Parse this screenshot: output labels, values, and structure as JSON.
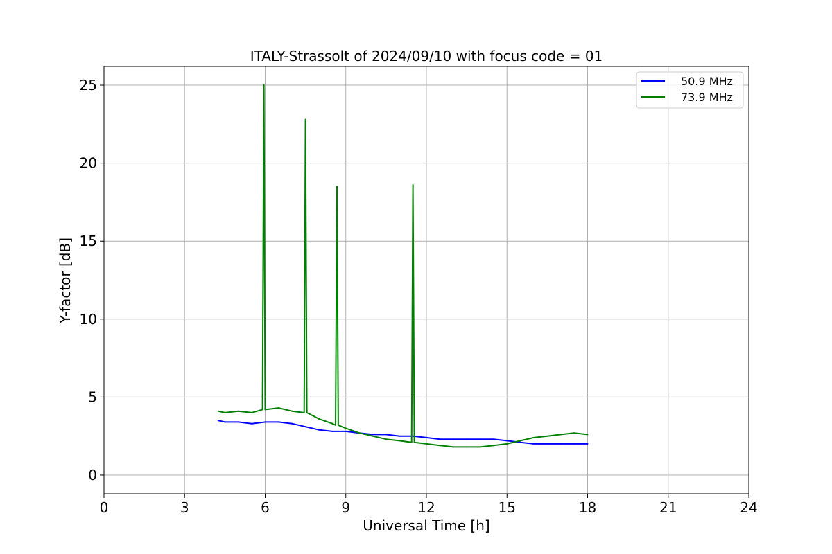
{
  "chart_data": {
    "type": "line",
    "title": "ITALY-Strassolt of 2024/09/10 with focus code = 01",
    "xlabel": "Universal Time [h]",
    "ylabel": "Y-factor [dB]",
    "xlim": [
      0,
      24
    ],
    "ylim": [
      -1.2,
      26.2
    ],
    "x_ticks": [
      0,
      3,
      6,
      9,
      12,
      15,
      18,
      21,
      24
    ],
    "x_tick_labels": [
      "0",
      "3",
      "6",
      "9",
      "12",
      "15",
      "18",
      "21",
      "24"
    ],
    "y_ticks": [
      0,
      5,
      10,
      15,
      20,
      25
    ],
    "y_tick_labels": [
      "0",
      "5",
      "10",
      "15",
      "20",
      "25"
    ],
    "grid": true,
    "legend_position": "top-right",
    "series": [
      {
        "name": "50.9 MHz",
        "color": "#0000ff",
        "x": [
          4.25,
          4.5,
          5.0,
          5.5,
          6.0,
          6.5,
          7.0,
          7.5,
          8.0,
          8.5,
          9.0,
          9.5,
          10.0,
          10.5,
          11.0,
          11.5,
          12.0,
          12.5,
          13.0,
          13.5,
          14.0,
          14.5,
          15.0,
          15.5,
          16.0,
          16.5,
          17.0,
          17.5,
          18.0
        ],
        "y": [
          3.5,
          3.4,
          3.4,
          3.3,
          3.4,
          3.4,
          3.3,
          3.1,
          2.9,
          2.8,
          2.8,
          2.7,
          2.6,
          2.6,
          2.5,
          2.5,
          2.4,
          2.3,
          2.3,
          2.3,
          2.3,
          2.3,
          2.2,
          2.1,
          2.0,
          2.0,
          2.0,
          2.0,
          2.0
        ]
      },
      {
        "name": "73.9 MHz",
        "color": "#008000",
        "x": [
          4.25,
          4.5,
          5.0,
          5.5,
          5.9,
          5.95,
          6.0,
          6.5,
          7.0,
          7.45,
          7.5,
          7.55,
          8.0,
          8.5,
          8.62,
          8.67,
          8.72,
          9.0,
          9.5,
          10.0,
          10.5,
          11.0,
          11.45,
          11.5,
          11.55,
          12.0,
          12.5,
          13.0,
          13.5,
          14.0,
          14.5,
          15.0,
          15.5,
          16.0,
          16.5,
          17.0,
          17.5,
          18.0
        ],
        "y": [
          4.1,
          4.0,
          4.1,
          4.0,
          4.2,
          25.0,
          4.2,
          4.3,
          4.1,
          4.0,
          22.8,
          4.0,
          3.6,
          3.3,
          3.2,
          18.5,
          3.2,
          3.0,
          2.7,
          2.5,
          2.3,
          2.2,
          2.1,
          18.6,
          2.1,
          2.0,
          1.9,
          1.8,
          1.8,
          1.8,
          1.9,
          2.0,
          2.2,
          2.4,
          2.5,
          2.6,
          2.7,
          2.6
        ]
      }
    ]
  }
}
